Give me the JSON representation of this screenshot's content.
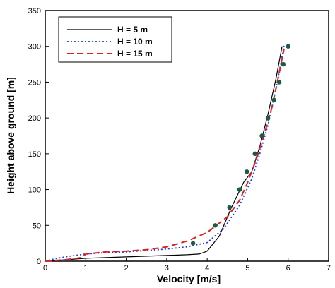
{
  "chart_data": {
    "type": "line",
    "xlabel": "Velocity [m/s]",
    "ylabel": "Height above ground [m]",
    "xlim": [
      0,
      7
    ],
    "ylim": [
      0,
      350
    ],
    "xticks": [
      "0",
      "1",
      "2",
      "3",
      "4",
      "5",
      "6",
      "7"
    ],
    "yticks": [
      "0",
      "50",
      "100",
      "150",
      "200",
      "250",
      "300",
      "350"
    ],
    "legend_position": "top-left",
    "series": [
      {
        "name": "H = 5 m",
        "style": "solid",
        "color": "#000000",
        "x": [
          0,
          0.5,
          1.0,
          1.5,
          2.0,
          2.5,
          3.0,
          3.5,
          3.8,
          4.0,
          4.3,
          4.6,
          4.9,
          5.1,
          5.3,
          5.5,
          5.7,
          5.85
        ],
        "y": [
          0,
          2,
          4,
          5,
          6,
          7,
          8,
          9,
          10,
          14,
          35,
          75,
          110,
          125,
          160,
          205,
          255,
          300
        ]
      },
      {
        "name": "H = 10 m",
        "style": "dotted",
        "color": "#1a3aff",
        "x": [
          0,
          0.3,
          0.6,
          1.0,
          1.5,
          2.0,
          2.5,
          3.0,
          3.5,
          4.0,
          4.4,
          4.8,
          5.1,
          5.3,
          5.5,
          5.7,
          5.9
        ],
        "y": [
          0,
          4,
          7,
          10,
          12,
          13,
          15,
          17,
          20,
          26,
          45,
          78,
          115,
          150,
          190,
          240,
          302
        ]
      },
      {
        "name": "H = 15 m",
        "style": "dashed",
        "color": "#e02020",
        "x": [
          0,
          0.5,
          0.9,
          1.0,
          1.5,
          2.0,
          2.5,
          3.0,
          3.5,
          4.0,
          4.5,
          4.8,
          5.0,
          5.2,
          5.4,
          5.6,
          5.75,
          5.9
        ],
        "y": [
          0,
          2,
          5,
          10,
          13,
          14,
          16,
          20,
          28,
          40,
          62,
          85,
          110,
          140,
          175,
          215,
          255,
          297
        ]
      },
      {
        "name": "",
        "style": "markers",
        "color": "#1a5c45",
        "x": [
          3.65,
          4.2,
          4.55,
          4.8,
          4.98,
          5.18,
          5.35,
          5.5,
          5.65,
          5.78,
          5.88,
          6.0
        ],
        "y": [
          25,
          50,
          75,
          100,
          125,
          150,
          175,
          200,
          225,
          250,
          275,
          300
        ]
      }
    ]
  }
}
